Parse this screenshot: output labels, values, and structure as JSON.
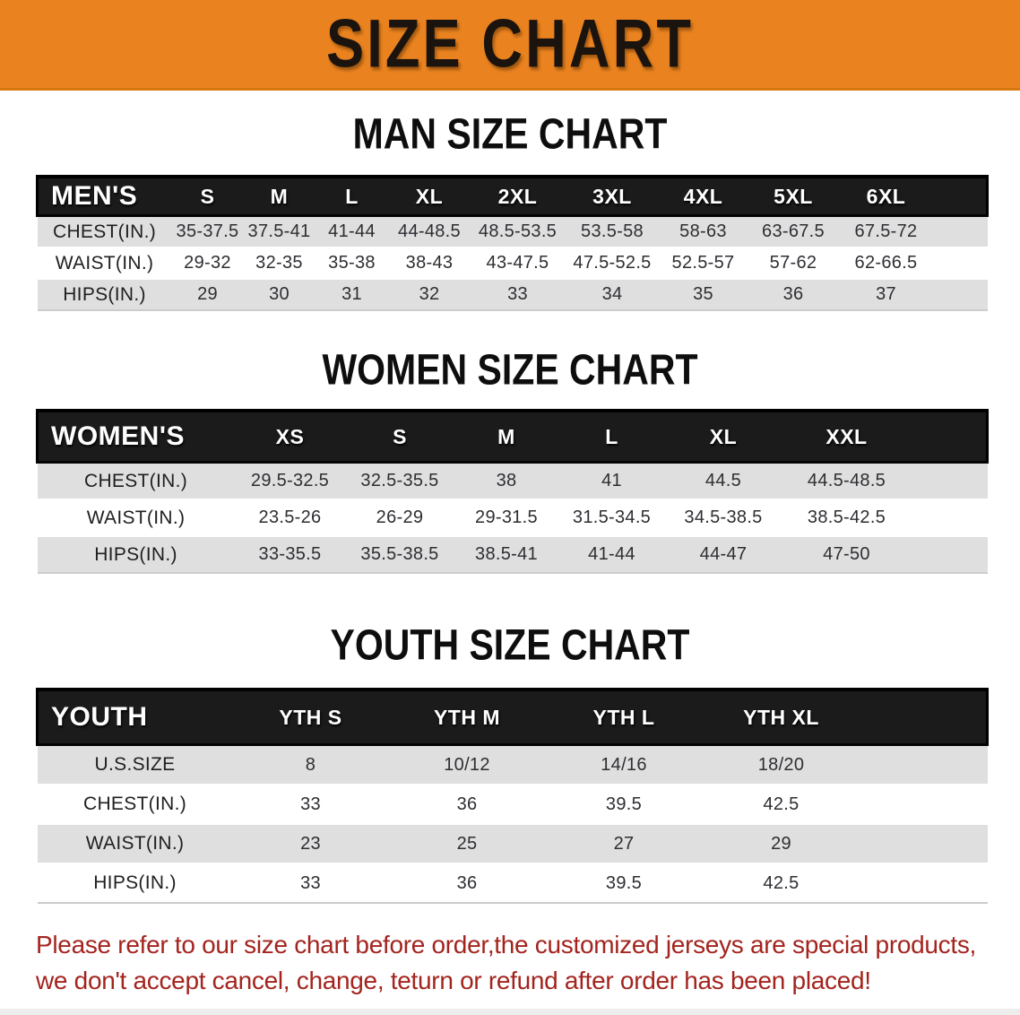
{
  "banner": {
    "title": "SIZE CHART",
    "bg_color": "#EA831F",
    "text_color": "#1B140E"
  },
  "sections": [
    {
      "heading": "MAN SIZE CHART",
      "table": {
        "header_label": "MEN'S",
        "columns": [
          "S",
          "M",
          "L",
          "XL",
          "2XL",
          "3XL",
          "4XL",
          "5XL",
          "6XL"
        ],
        "rows": [
          {
            "label": "CHEST(IN.)",
            "values": [
              "35-37.5",
              "37.5-41",
              "41-44",
              "44-48.5",
              "48.5-53.5",
              "53.5-58",
              "58-63",
              "63-67.5",
              "67.5-72"
            ]
          },
          {
            "label": "WAIST(IN.)",
            "values": [
              "29-32",
              "32-35",
              "35-38",
              "38-43",
              "43-47.5",
              "47.5-52.5",
              "52.5-57",
              "57-62",
              "62-66.5"
            ]
          },
          {
            "label": "HIPS(IN.)",
            "values": [
              "29",
              "30",
              "31",
              "32",
              "33",
              "34",
              "35",
              "36",
              "37"
            ]
          }
        ]
      }
    },
    {
      "heading": "WOMEN SIZE CHART",
      "table": {
        "header_label": "WOMEN'S",
        "columns": [
          "XS",
          "S",
          "M",
          "L",
          "XL",
          "XXL"
        ],
        "rows": [
          {
            "label": "CHEST(IN.)",
            "values": [
              "29.5-32.5",
              "32.5-35.5",
              "38",
              "41",
              "44.5",
              "44.5-48.5"
            ]
          },
          {
            "label": "WAIST(IN.)",
            "values": [
              "23.5-26",
              "26-29",
              "29-31.5",
              "31.5-34.5",
              "34.5-38.5",
              "38.5-42.5"
            ]
          },
          {
            "label": "HIPS(IN.)",
            "values": [
              "33-35.5",
              "35.5-38.5",
              "38.5-41",
              "41-44",
              "44-47",
              "47-50"
            ]
          }
        ]
      }
    },
    {
      "heading": "YOUTH SIZE CHART",
      "table": {
        "header_label": "YOUTH",
        "columns": [
          "YTH S",
          "YTH M",
          "YTH L",
          "YTH XL"
        ],
        "rows": [
          {
            "label": "U.S.SIZE",
            "values": [
              "8",
              "10/12",
              "14/16",
              "18/20"
            ]
          },
          {
            "label": "CHEST(IN.)",
            "values": [
              "33",
              "36",
              "39.5",
              "42.5"
            ]
          },
          {
            "label": "WAIST(IN.)",
            "values": [
              "23",
              "25",
              "27",
              "29"
            ]
          },
          {
            "label": "HIPS(IN.)",
            "values": [
              "33",
              "36",
              "39.5",
              "42.5"
            ]
          }
        ]
      }
    }
  ],
  "disclaimer": {
    "line1": "Please refer to our size chart before order,the customized jerseys are special products,",
    "line2": "we don't accept cancel, change, teturn or refund after order has been placed!",
    "color": "#A3241E"
  }
}
